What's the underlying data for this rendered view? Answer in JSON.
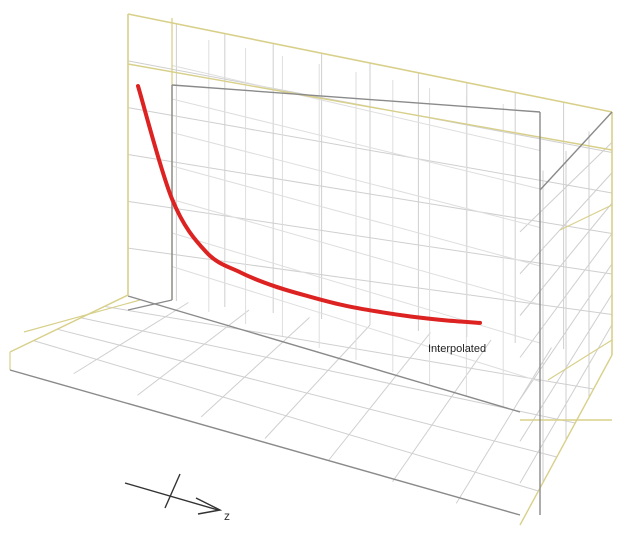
{
  "chart_data": {
    "type": "line",
    "view": "3d-perspective-grid-box",
    "grid": true,
    "series": [
      {
        "name": "Interpolated",
        "color": "#dd2222",
        "values": [
          1.0,
          0.55,
          0.34,
          0.26,
          0.205,
          0.165,
          0.13,
          0.105,
          0.085,
          0.07,
          0.06
        ]
      }
    ],
    "x_normalized": [
      0.0,
      0.1,
      0.2,
      0.3,
      0.4,
      0.5,
      0.6,
      0.7,
      0.8,
      0.9,
      1.0
    ],
    "axis_indicator": {
      "label": "z"
    },
    "colors": {
      "box_highlight": "#d8d08a",
      "grid": "#cfcfcf",
      "box_frame": "#8a8a8a",
      "curve": "#dd2222"
    }
  }
}
